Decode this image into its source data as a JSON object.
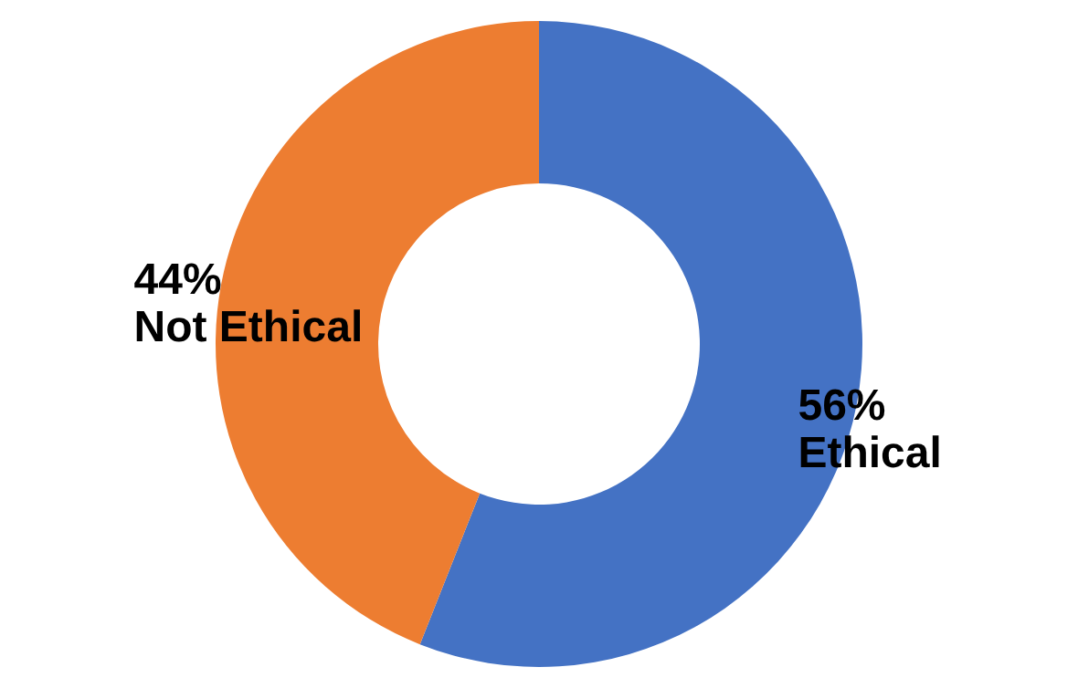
{
  "chart_data": {
    "type": "donut",
    "categories": [
      "Ethical",
      "Not Ethical"
    ],
    "values": [
      56,
      44
    ],
    "colors": [
      "#4472c4",
      "#ed7d31"
    ],
    "value_labels": [
      "56%",
      "44%"
    ],
    "legend": false
  }
}
